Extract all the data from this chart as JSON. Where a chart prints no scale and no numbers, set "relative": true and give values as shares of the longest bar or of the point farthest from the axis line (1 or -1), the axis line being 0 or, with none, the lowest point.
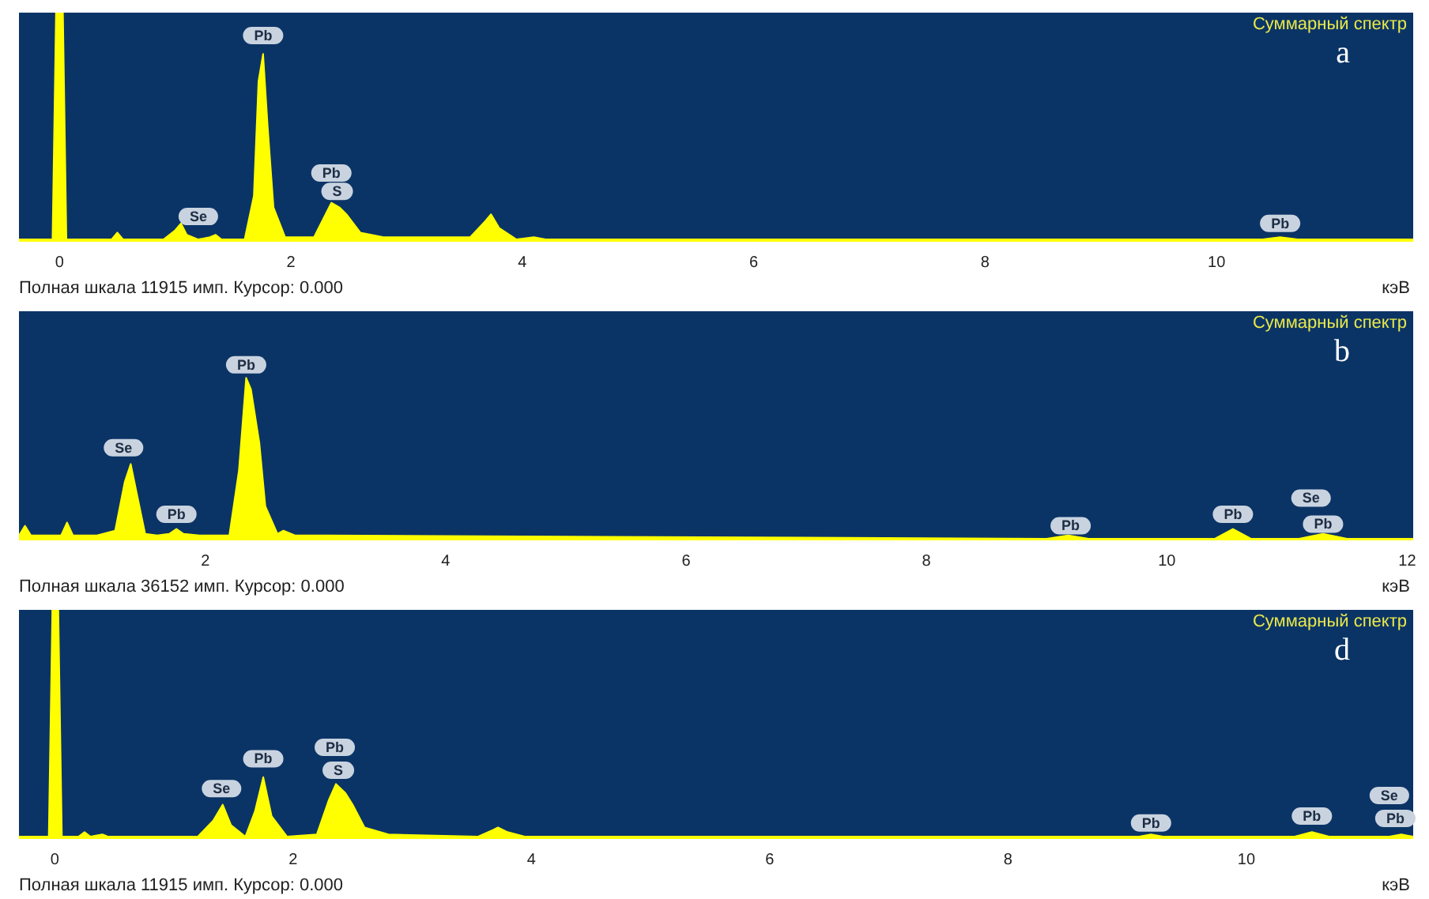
{
  "chart_data": [
    {
      "type": "area",
      "relative": true,
      "title": "a",
      "subtitle": "Суммарный спектр",
      "xlabel": "кэВ",
      "xlim": [
        -0.35,
        11.7
      ],
      "xticks": [
        0,
        2,
        4,
        6,
        8,
        10
      ],
      "series": [
        {
          "color": "#ffff00",
          "x": [
            -0.35,
            -0.06,
            -0.03,
            0.03,
            0.06,
            0.3,
            0.45,
            0.5,
            0.55,
            0.9,
            1.0,
            1.05,
            1.1,
            1.2,
            1.3,
            1.35,
            1.4,
            1.6,
            1.68,
            1.72,
            1.76,
            1.8,
            1.85,
            1.95,
            2.2,
            2.3,
            2.35,
            2.42,
            2.48,
            2.6,
            2.8,
            3.55,
            3.68,
            3.73,
            3.8,
            3.95,
            4.1,
            4.2,
            6.0,
            7.0,
            10.4,
            10.55,
            10.7,
            11.7
          ],
          "values": [
            0.01,
            0.01,
            1,
            1,
            0.01,
            0.01,
            0.01,
            0.04,
            0.01,
            0.01,
            0.05,
            0.08,
            0.03,
            0.01,
            0.02,
            0.03,
            0.01,
            0.01,
            0.2,
            0.7,
            0.82,
            0.5,
            0.15,
            0.02,
            0.02,
            0.12,
            0.17,
            0.15,
            0.12,
            0.04,
            0.02,
            0.02,
            0.09,
            0.12,
            0.06,
            0.01,
            0.02,
            0.01,
            0.01,
            0.01,
            0.01,
            0.02,
            0.01,
            0.01
          ]
        }
      ],
      "annotations": [
        "Полная шкала 11915 имп. Курсор: 0.000",
        {
          "text": "Pb",
          "x": 1.76,
          "y": 0.9
        },
        {
          "text": "Se",
          "x": 1.2,
          "y": 0.11
        },
        {
          "text": "Pb",
          "x": 2.35,
          "y": 0.3
        },
        {
          "text": "S",
          "x": 2.4,
          "y": 0.22
        },
        {
          "text": "Pb",
          "x": 10.55,
          "y": 0.08
        }
      ]
    },
    {
      "type": "area",
      "relative": true,
      "title": "b",
      "subtitle": "Суммарный спектр",
      "xlabel": "кэВ",
      "xlim": [
        0.45,
        12.05
      ],
      "xticks": [
        2,
        4,
        6,
        8,
        10,
        12
      ],
      "series": [
        {
          "color": "#ffff00",
          "x": [
            0.45,
            0.5,
            0.55,
            0.6,
            0.8,
            0.85,
            0.9,
            1.1,
            1.25,
            1.33,
            1.38,
            1.43,
            1.5,
            1.6,
            1.7,
            1.76,
            1.82,
            1.95,
            2.2,
            2.28,
            2.34,
            2.38,
            2.45,
            2.5,
            2.6,
            2.65,
            2.75,
            3.0,
            9.0,
            9.18,
            9.35,
            10.4,
            10.55,
            10.7,
            11.1,
            11.3,
            11.5,
            12.05
          ],
          "values": [
            0.03,
            0.09,
            0.03,
            0.03,
            0.03,
            0.11,
            0.03,
            0.03,
            0.06,
            0.36,
            0.47,
            0.29,
            0.04,
            0.03,
            0.04,
            0.07,
            0.04,
            0.03,
            0.03,
            0.43,
            1,
            0.93,
            0.6,
            0.21,
            0.04,
            0.06,
            0.03,
            0.03,
            0.01,
            0.03,
            0.01,
            0.01,
            0.07,
            0.01,
            0.01,
            0.04,
            0.01,
            0.01
          ]
        }
      ],
      "annotations": [
        "Полная шкала 36152 имп. Курсор: 0.000",
        {
          "text": "Se",
          "x": 1.32,
          "y": 0.57
        },
        {
          "text": "Pb",
          "x": 1.76,
          "y": 0.16
        },
        {
          "text": "Pb",
          "x": 2.34,
          "y": 1.08
        },
        {
          "text": "Pb",
          "x": 9.2,
          "y": 0.09
        },
        {
          "text": "Pb",
          "x": 10.55,
          "y": 0.16
        },
        {
          "text": "Se",
          "x": 11.2,
          "y": 0.26
        },
        {
          "text": "Pb",
          "x": 11.3,
          "y": 0.1
        }
      ]
    },
    {
      "type": "area",
      "relative": true,
      "title": "d",
      "subtitle": "Суммарный спектр",
      "xlabel": "кэВ",
      "xlim": [
        -0.3,
        11.4
      ],
      "xticks": [
        0,
        2,
        4,
        6,
        8,
        10
      ],
      "series": [
        {
          "color": "#ffff00",
          "x": [
            -0.3,
            -0.05,
            -0.02,
            0.03,
            0.06,
            0.2,
            0.25,
            0.3,
            0.4,
            0.45,
            1.2,
            1.33,
            1.41,
            1.48,
            1.6,
            1.68,
            1.75,
            1.82,
            1.95,
            2.2,
            2.3,
            2.36,
            2.44,
            2.5,
            2.6,
            2.8,
            3.55,
            3.68,
            3.72,
            3.8,
            3.95,
            9.1,
            9.2,
            9.3,
            10.4,
            10.55,
            10.7,
            11.2,
            11.3,
            11.4
          ],
          "values": [
            0.01,
            0.01,
            1,
            1,
            0.01,
            0.01,
            0.03,
            0.01,
            0.02,
            0.01,
            0.01,
            0.08,
            0.15,
            0.06,
            0.01,
            0.12,
            0.27,
            0.1,
            0.01,
            0.02,
            0.17,
            0.24,
            0.2,
            0.15,
            0.05,
            0.02,
            0.01,
            0.04,
            0.05,
            0.03,
            0.01,
            0.01,
            0.02,
            0.01,
            0.01,
            0.03,
            0.01,
            0.01,
            0.02,
            0.01
          ]
        }
      ],
      "annotations": [
        "Полная шкала 11915 имп. Курсор: 0.000",
        {
          "text": "Se",
          "x": 1.4,
          "y": 0.22
        },
        {
          "text": "Pb",
          "x": 1.75,
          "y": 0.35
        },
        {
          "text": "Pb",
          "x": 2.35,
          "y": 0.4
        },
        {
          "text": "S",
          "x": 2.38,
          "y": 0.3
        },
        {
          "text": "Pb",
          "x": 9.2,
          "y": 0.07
        },
        {
          "text": "Pb",
          "x": 10.55,
          "y": 0.1
        },
        {
          "text": "Se",
          "x": 11.2,
          "y": 0.19
        },
        {
          "text": "Pb",
          "x": 11.25,
          "y": 0.09
        }
      ]
    }
  ]
}
